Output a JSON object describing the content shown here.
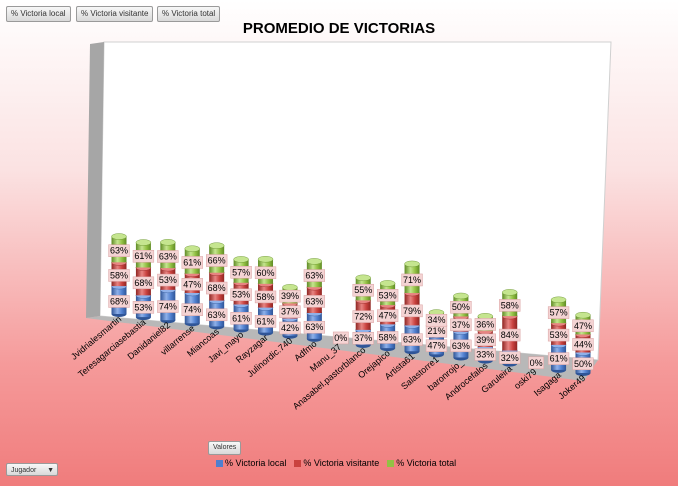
{
  "field_buttons": [
    "% Victoria local",
    "% Victoria visitante",
    "% Victoria total"
  ],
  "filter_button": {
    "label": "Jugador",
    "icon": "dropdown-arrow-icon"
  },
  "values_button": "Valores",
  "colors": {
    "local": "#4f7fcf",
    "visitante": "#c9423f",
    "total": "#93c144"
  },
  "chart_data": {
    "type": "bar",
    "stacked": true,
    "three_d": true,
    "cylinder": true,
    "title": "PROMEDIO DE VICTORIAS",
    "categories": [
      "Jvidrialesmartin",
      "Teresagarciasebastia",
      "Danidaniel82",
      "villarrense",
      "Miancoas",
      "Javi_mayo",
      "Rayzagar",
      "Julinordic.740",
      "Adfmo",
      "Manu_37",
      "Anasabel.pastorblanco",
      "Orejapico",
      "Artista61",
      "Salastorre1",
      "baronrojo_",
      "Androcefalos",
      "Garuleira",
      "oski79",
      "Isagaga",
      "Joker49"
    ],
    "series": [
      {
        "name": "% Victoria local",
        "values": [
          68,
          53,
          74,
          74,
          63,
          61,
          61,
          42,
          63,
          0,
          37,
          58,
          63,
          47,
          63,
          33,
          32,
          0,
          61,
          50
        ]
      },
      {
        "name": "% Victoria visitante",
        "values": [
          58,
          68,
          53,
          47,
          68,
          53,
          58,
          37,
          63,
          0,
          72,
          47,
          79,
          21,
          37,
          39,
          84,
          0,
          53,
          44
        ]
      },
      {
        "name": "% Victoria total",
        "values": [
          63,
          61,
          63,
          61,
          66,
          57,
          60,
          39,
          63,
          0,
          55,
          53,
          71,
          34,
          50,
          36,
          58,
          0,
          57,
          47
        ]
      }
    ],
    "data_labels": [
      [
        "68%",
        "53%",
        "74%",
        "74%",
        "63%",
        "61%",
        "61%",
        "42%",
        "63%",
        "0%",
        "37%",
        "58%",
        "63%",
        "47%",
        "63%",
        "33%",
        "32%",
        "0%",
        "61%",
        "50%"
      ],
      [
        "58%",
        "68%",
        "53%",
        "47%",
        "68%",
        "53%",
        "58%",
        "37%",
        "63%",
        "",
        "72%",
        "47%",
        "79%",
        "21%",
        "37%",
        "39%",
        "84%",
        "",
        "53%",
        "44%"
      ],
      [
        "63%",
        "61%",
        "63%",
        "61%",
        "66%",
        "57%",
        "60%",
        "39%",
        "63%",
        "",
        "55%",
        "53%",
        "71%",
        "34%",
        "50%",
        "36%",
        "58%",
        "",
        "57%",
        "47%"
      ]
    ],
    "legend_position": "bottom",
    "grid": false
  }
}
